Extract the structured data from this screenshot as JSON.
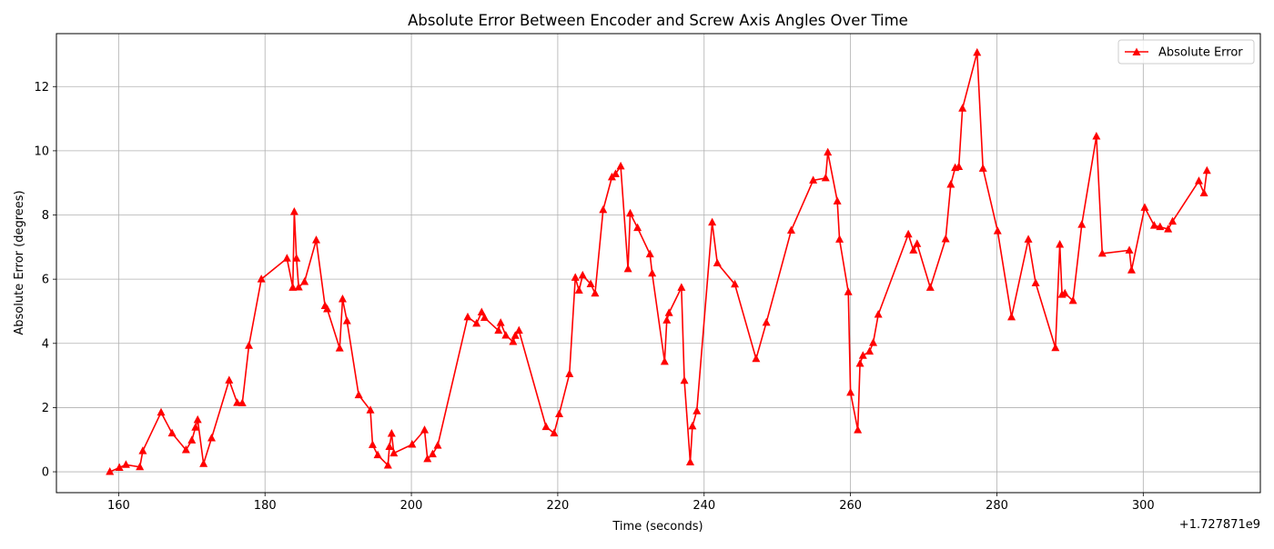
{
  "chart_data": {
    "type": "line",
    "title": "Absolute Error Between Encoder and Screw Axis Angles Over Time",
    "xlabel": "Time (seconds)",
    "ylabel": "Absolute Error (degrees)",
    "x_offset_label": "+1.727871e9",
    "xlim": [
      151.5,
      316.0
    ],
    "ylim": [
      -0.65,
      13.65
    ],
    "xticks": [
      160,
      180,
      200,
      220,
      240,
      260,
      280,
      300
    ],
    "yticks": [
      0,
      2,
      4,
      6,
      8,
      10,
      12
    ],
    "grid": true,
    "legend_position": "top-right",
    "series": [
      {
        "name": "Absolute Error",
        "color": "#ff0000",
        "marker": "triangle-up",
        "points": [
          [
            158.8,
            0.0
          ],
          [
            160.1,
            0.13
          ],
          [
            161.0,
            0.22
          ],
          [
            162.9,
            0.15
          ],
          [
            163.3,
            0.65
          ],
          [
            165.8,
            1.85
          ],
          [
            167.3,
            1.2
          ],
          [
            169.2,
            0.68
          ],
          [
            170.0,
            0.98
          ],
          [
            170.5,
            1.38
          ],
          [
            170.8,
            1.62
          ],
          [
            171.6,
            0.25
          ],
          [
            172.7,
            1.05
          ],
          [
            175.1,
            2.85
          ],
          [
            176.2,
            2.15
          ],
          [
            176.9,
            2.14
          ],
          [
            177.8,
            3.93
          ],
          [
            179.5,
            6.0
          ],
          [
            183.0,
            6.65
          ],
          [
            183.8,
            5.74
          ],
          [
            184.0,
            8.1
          ],
          [
            184.3,
            6.65
          ],
          [
            184.6,
            5.75
          ],
          [
            185.4,
            5.92
          ],
          [
            187.0,
            7.22
          ],
          [
            188.2,
            5.17
          ],
          [
            188.5,
            5.07
          ],
          [
            190.2,
            3.85
          ],
          [
            190.6,
            5.38
          ],
          [
            191.2,
            4.7
          ],
          [
            192.8,
            2.39
          ],
          [
            194.4,
            1.92
          ],
          [
            194.7,
            0.84
          ],
          [
            195.4,
            0.52
          ],
          [
            196.8,
            0.2
          ],
          [
            197.0,
            0.78
          ],
          [
            197.3,
            1.19
          ],
          [
            197.6,
            0.58
          ],
          [
            200.1,
            0.85
          ],
          [
            201.8,
            1.3
          ],
          [
            202.2,
            0.4
          ],
          [
            202.9,
            0.55
          ],
          [
            203.6,
            0.82
          ],
          [
            207.7,
            4.82
          ],
          [
            208.9,
            4.62
          ],
          [
            209.6,
            4.97
          ],
          [
            210.0,
            4.8
          ],
          [
            211.9,
            4.4
          ],
          [
            212.2,
            4.64
          ],
          [
            212.9,
            4.25
          ],
          [
            213.9,
            4.05
          ],
          [
            214.2,
            4.24
          ],
          [
            214.7,
            4.4
          ],
          [
            218.4,
            1.4
          ],
          [
            219.5,
            1.2
          ],
          [
            220.2,
            1.8
          ],
          [
            221.6,
            3.05
          ],
          [
            222.4,
            6.05
          ],
          [
            222.9,
            5.65
          ],
          [
            223.4,
            6.12
          ],
          [
            224.5,
            5.85
          ],
          [
            225.1,
            5.56
          ],
          [
            226.2,
            8.16
          ],
          [
            227.4,
            9.18
          ],
          [
            227.9,
            9.28
          ],
          [
            228.6,
            9.52
          ],
          [
            229.6,
            6.32
          ],
          [
            229.9,
            8.05
          ],
          [
            230.9,
            7.6
          ],
          [
            232.6,
            6.78
          ],
          [
            232.9,
            6.18
          ],
          [
            234.6,
            3.43
          ],
          [
            234.9,
            4.72
          ],
          [
            235.2,
            4.95
          ],
          [
            236.9,
            5.74
          ],
          [
            237.3,
            2.84
          ],
          [
            238.1,
            0.3
          ],
          [
            238.4,
            1.42
          ],
          [
            239.0,
            1.89
          ],
          [
            241.1,
            7.77
          ],
          [
            241.8,
            6.5
          ],
          [
            244.2,
            5.84
          ],
          [
            247.1,
            3.52
          ],
          [
            248.5,
            4.65
          ],
          [
            251.9,
            7.52
          ],
          [
            254.9,
            9.08
          ],
          [
            256.6,
            9.15
          ],
          [
            256.9,
            9.95
          ],
          [
            258.2,
            8.43
          ],
          [
            258.5,
            7.24
          ],
          [
            259.7,
            5.6
          ],
          [
            260.0,
            2.47
          ],
          [
            261.0,
            1.3
          ],
          [
            261.3,
            3.37
          ],
          [
            261.7,
            3.62
          ],
          [
            262.6,
            3.75
          ],
          [
            263.1,
            4.02
          ],
          [
            263.8,
            4.9
          ],
          [
            267.9,
            7.4
          ],
          [
            268.6,
            6.9
          ],
          [
            269.1,
            7.1
          ],
          [
            270.9,
            5.74
          ],
          [
            273.0,
            7.25
          ],
          [
            273.7,
            8.95
          ],
          [
            274.3,
            9.47
          ],
          [
            274.8,
            9.5
          ],
          [
            275.3,
            11.32
          ],
          [
            277.3,
            13.06
          ],
          [
            278.1,
            9.45
          ],
          [
            280.1,
            7.5
          ],
          [
            282.0,
            4.82
          ],
          [
            284.3,
            7.24
          ],
          [
            285.3,
            5.88
          ],
          [
            288.0,
            3.86
          ],
          [
            288.6,
            7.08
          ],
          [
            288.9,
            5.52
          ],
          [
            289.3,
            5.56
          ],
          [
            290.4,
            5.33
          ],
          [
            291.6,
            7.7
          ],
          [
            293.6,
            10.45
          ],
          [
            294.4,
            6.8
          ],
          [
            298.1,
            6.9
          ],
          [
            298.4,
            6.28
          ],
          [
            300.2,
            8.23
          ],
          [
            301.5,
            7.67
          ],
          [
            302.3,
            7.63
          ],
          [
            303.4,
            7.56
          ],
          [
            304.0,
            7.8
          ],
          [
            307.6,
            9.06
          ],
          [
            308.3,
            8.68
          ],
          [
            308.7,
            9.38
          ]
        ]
      }
    ]
  }
}
